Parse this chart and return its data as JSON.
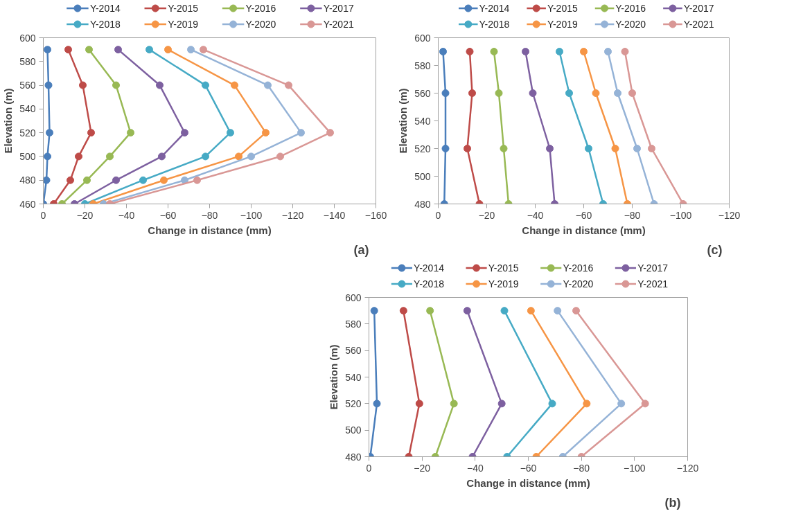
{
  "chart_data": [
    {
      "type": "line",
      "xlabel": "Change in distance (mm)",
      "ylabel": "Elevation (m)",
      "annotations": [
        "(a)"
      ],
      "xlim": [
        0,
        -160
      ],
      "xticks": [
        0,
        -20,
        -40,
        -60,
        -80,
        -100,
        -120,
        -140,
        -160
      ],
      "ylim": [
        460,
        600
      ],
      "yticks": [
        460,
        480,
        500,
        520,
        540,
        560,
        580,
        600
      ],
      "legend": "top",
      "marker": "circle",
      "series": [
        {
          "name": "Y-2014",
          "color": "#4a7ebb",
          "x": [
            -2,
            -2.5,
            -3,
            -2,
            -1.5,
            0
          ],
          "values": [
            590,
            560,
            520,
            500,
            480,
            460
          ]
        },
        {
          "name": "Y-2015",
          "color": "#be4b48",
          "x": [
            -12,
            -19,
            -23,
            -17,
            -13,
            -5
          ],
          "values": [
            590,
            560,
            520,
            500,
            480,
            460
          ]
        },
        {
          "name": "Y-2016",
          "color": "#98b954",
          "x": [
            -22,
            -35,
            -42,
            -32,
            -21,
            -9
          ],
          "values": [
            590,
            560,
            520,
            500,
            480,
            460
          ]
        },
        {
          "name": "Y-2017",
          "color": "#7d60a0",
          "x": [
            -36,
            -56,
            -68,
            -57,
            -35,
            -15
          ],
          "values": [
            590,
            560,
            520,
            500,
            480,
            460
          ]
        },
        {
          "name": "Y-2018",
          "color": "#46aac5",
          "x": [
            -51,
            -78,
            -90,
            -78,
            -48,
            -20
          ],
          "values": [
            590,
            560,
            520,
            500,
            480,
            460
          ]
        },
        {
          "name": "Y-2019",
          "color": "#f69545",
          "x": [
            -60,
            -92,
            -107,
            -94,
            -58,
            -24
          ],
          "values": [
            590,
            560,
            520,
            500,
            480,
            460
          ]
        },
        {
          "name": "Y-2020",
          "color": "#95b3d7",
          "x": [
            -71,
            -108,
            -124,
            -100,
            -68,
            -29
          ],
          "values": [
            590,
            560,
            520,
            500,
            480,
            460
          ]
        },
        {
          "name": "Y-2021",
          "color": "#d99795",
          "x": [
            -77,
            -118,
            -138,
            -114,
            -74,
            -32
          ],
          "values": [
            590,
            560,
            520,
            500,
            480,
            460
          ]
        }
      ]
    },
    {
      "type": "line",
      "xlabel": "Change in distance (mm)",
      "ylabel": "Elevation (m)",
      "annotations": [
        "(c)"
      ],
      "xlim": [
        0,
        -120
      ],
      "xticks": [
        0,
        -20,
        -40,
        -60,
        -80,
        -100,
        -120
      ],
      "ylim": [
        480,
        600
      ],
      "yticks": [
        480,
        500,
        520,
        540,
        560,
        580,
        600
      ],
      "legend": "top",
      "marker": "circle",
      "series": [
        {
          "name": "Y-2014",
          "color": "#4a7ebb",
          "x": [
            -2,
            -3,
            -3,
            -2.5
          ],
          "values": [
            590,
            560,
            520,
            480
          ]
        },
        {
          "name": "Y-2015",
          "color": "#be4b48",
          "x": [
            -13,
            -14,
            -12,
            -17
          ],
          "values": [
            590,
            560,
            520,
            480
          ]
        },
        {
          "name": "Y-2016",
          "color": "#98b954",
          "x": [
            -23,
            -25,
            -27,
            -29
          ],
          "values": [
            590,
            560,
            520,
            480
          ]
        },
        {
          "name": "Y-2017",
          "color": "#7d60a0",
          "x": [
            -36,
            -39,
            -46,
            -48
          ],
          "values": [
            590,
            560,
            520,
            480
          ]
        },
        {
          "name": "Y-2018",
          "color": "#46aac5",
          "x": [
            -50,
            -54,
            -62,
            -68
          ],
          "values": [
            590,
            560,
            520,
            480
          ]
        },
        {
          "name": "Y-2019",
          "color": "#f69545",
          "x": [
            -60,
            -65,
            -73,
            -78
          ],
          "values": [
            590,
            560,
            520,
            480
          ]
        },
        {
          "name": "Y-2020",
          "color": "#95b3d7",
          "x": [
            -70,
            -74,
            -82,
            -89
          ],
          "values": [
            590,
            560,
            520,
            480
          ]
        },
        {
          "name": "Y-2021",
          "color": "#d99795",
          "x": [
            -77,
            -80,
            -88,
            -101
          ],
          "values": [
            590,
            560,
            520,
            480
          ]
        }
      ]
    },
    {
      "type": "line",
      "xlabel": "Change in distance (mm)",
      "ylabel": "Elevation (m)",
      "annotations": [
        "(b)"
      ],
      "xlim": [
        0,
        -120
      ],
      "xticks": [
        0,
        -20,
        -40,
        -60,
        -80,
        -100,
        -120
      ],
      "ylim": [
        480,
        600
      ],
      "yticks": [
        480,
        500,
        520,
        540,
        560,
        580,
        600
      ],
      "legend": "top",
      "marker": "circle",
      "series": [
        {
          "name": "Y-2014",
          "color": "#4a7ebb",
          "x": [
            -2,
            -3,
            -0.5
          ],
          "values": [
            590,
            520,
            480
          ]
        },
        {
          "name": "Y-2015",
          "color": "#be4b48",
          "x": [
            -13,
            -19,
            -15
          ],
          "values": [
            590,
            520,
            480
          ]
        },
        {
          "name": "Y-2016",
          "color": "#98b954",
          "x": [
            -23,
            -32,
            -25
          ],
          "values": [
            590,
            520,
            480
          ]
        },
        {
          "name": "Y-2017",
          "color": "#7d60a0",
          "x": [
            -37,
            -50,
            -39
          ],
          "values": [
            590,
            520,
            480
          ]
        },
        {
          "name": "Y-2018",
          "color": "#46aac5",
          "x": [
            -51,
            -69,
            -52
          ],
          "values": [
            590,
            520,
            480
          ]
        },
        {
          "name": "Y-2019",
          "color": "#f69545",
          "x": [
            -61,
            -82,
            -63
          ],
          "values": [
            590,
            520,
            480
          ]
        },
        {
          "name": "Y-2020",
          "color": "#95b3d7",
          "x": [
            -71,
            -95,
            -73
          ],
          "values": [
            590,
            520,
            480
          ]
        },
        {
          "name": "Y-2021",
          "color": "#d99795",
          "x": [
            -78,
            -104,
            -80
          ],
          "values": [
            590,
            520,
            480
          ]
        }
      ]
    }
  ]
}
